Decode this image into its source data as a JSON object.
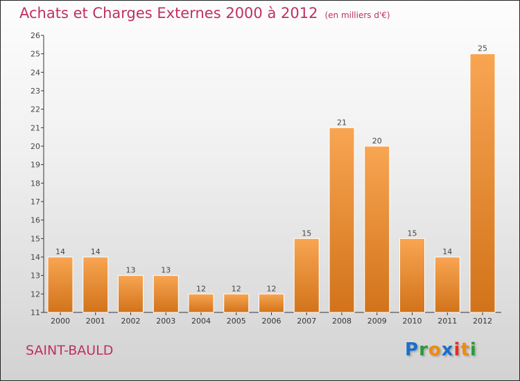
{
  "chart_data": {
    "type": "bar",
    "title": "Achats et Charges Externes 2000 à 2012",
    "unit": "(en milliers d'€)",
    "categories": [
      "2000",
      "2001",
      "2002",
      "2003",
      "2004",
      "2005",
      "2006",
      "2007",
      "2008",
      "2009",
      "2010",
      "2011",
      "2012"
    ],
    "values": [
      14,
      14,
      13,
      13,
      12,
      12,
      12,
      15,
      21,
      20,
      15,
      14,
      25
    ],
    "ylim": [
      11,
      26
    ],
    "yticks": [
      11,
      12,
      13,
      14,
      15,
      16,
      17,
      18,
      19,
      20,
      21,
      22,
      23,
      24,
      25,
      26
    ],
    "grid": false,
    "bar_color_top": "#f8a552",
    "bar_color_bottom": "#d2731a"
  },
  "commune": "SAINT-BAULD",
  "logo": "Proxiti"
}
